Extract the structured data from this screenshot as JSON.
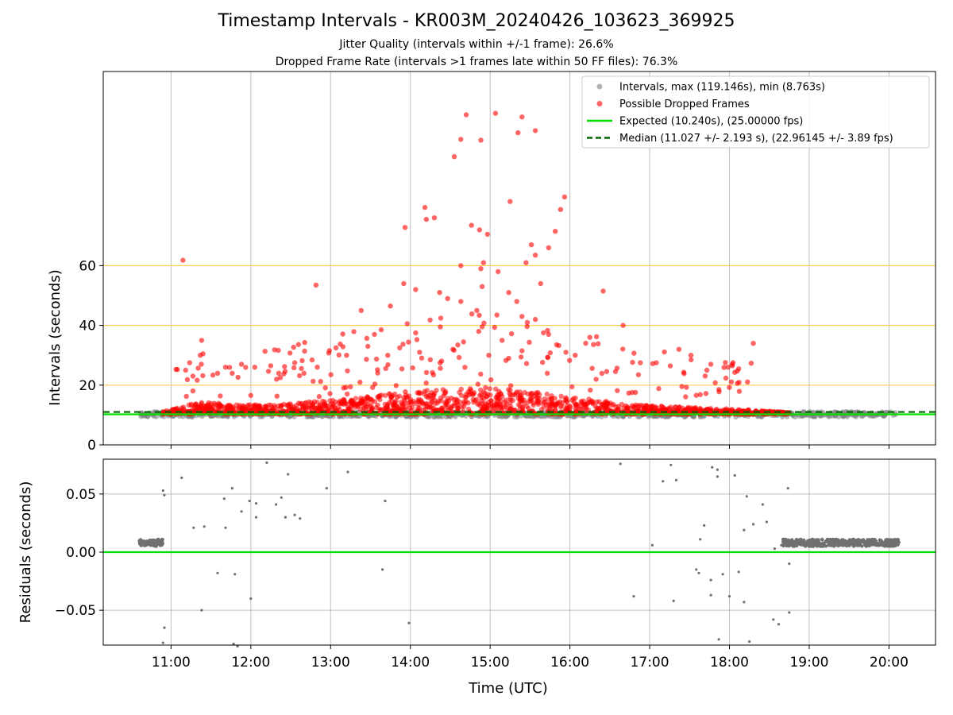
{
  "figure": {
    "title": "Timestamp Intervals - KR003M_20240426_103623_369925",
    "subtitle_jitter": "Jitter Quality (intervals within +/-1 frame): 26.6%",
    "subtitle_dropped": "Dropped Frame Rate (intervals >1 frames late within 50 FF files): 76.3%"
  },
  "chart_data": [
    {
      "type": "scatter",
      "ylabel": "Intervals (seconds)",
      "xlim": [
        "10:09",
        "20:35"
      ],
      "ylim": [
        0,
        125
      ],
      "y_ticks": [
        0,
        20,
        40,
        60
      ],
      "reference_lines": [
        20,
        40,
        60
      ],
      "grid": true,
      "legend_position": "top-right",
      "colors": {
        "intervals": "#808080",
        "dropped": "#ff0000",
        "expected": "#00dd00",
        "median": "#006400",
        "reference": "#ffcc55"
      },
      "legend": {
        "intervals": "Intervals, max (119.146s), min (8.763s)",
        "dropped": "Possible Dropped Frames",
        "expected": "Expected (10.240s), (25.00000 fps)",
        "median": "Median (11.027 +/- 2.193 s), (22.96145 +/- 3.89 fps)"
      },
      "expected_interval": 10.24,
      "median_interval": 11.027,
      "intervals_series": {
        "name": "Intervals, max (119.146s), min (8.763s)",
        "x_range": [
          "10:36",
          "20:05"
        ],
        "y_typical": 10.24,
        "y_min": 8.763,
        "y_max": 119.146
      },
      "dropped_frames_series": {
        "name": "Possible Dropped Frames",
        "points": [
          [
            "11:09",
            61.8
          ],
          [
            "12:49",
            53.5
          ],
          [
            "13:56",
            72.8
          ],
          [
            "14:11",
            79.5
          ],
          [
            "14:12",
            75.5
          ],
          [
            "14:18",
            76.0
          ],
          [
            "14:33",
            96.5
          ],
          [
            "14:38",
            102.3
          ],
          [
            "14:46",
            73.5
          ],
          [
            "14:52",
            72.0
          ],
          [
            "14:58",
            70.5
          ],
          [
            "14:42",
            110.5
          ],
          [
            "14:53",
            102.0
          ],
          [
            "15:04",
            111.0
          ],
          [
            "15:21",
            104.5
          ],
          [
            "15:34",
            105.2
          ],
          [
            "15:24",
            109.8
          ],
          [
            "15:49",
            71.5
          ],
          [
            "15:56",
            83.0
          ],
          [
            "15:53",
            78.8
          ],
          [
            "15:15",
            81.5
          ],
          [
            "14:38",
            60.0
          ],
          [
            "14:53",
            59.0
          ],
          [
            "14:55",
            61.0
          ],
          [
            "15:06",
            58.0
          ],
          [
            "15:27",
            61.0
          ],
          [
            "15:34",
            63.5
          ],
          [
            "15:38",
            54.0
          ],
          [
            "15:31",
            67.0
          ],
          [
            "15:44",
            66.0
          ],
          [
            "14:04",
            52.0
          ],
          [
            "13:55",
            54.0
          ],
          [
            "14:22",
            51.0
          ],
          [
            "14:28",
            49.0
          ],
          [
            "14:38",
            48.0
          ],
          [
            "14:54",
            53.0
          ],
          [
            "14:50",
            45.0
          ],
          [
            "15:14",
            51.0
          ],
          [
            "15:20",
            48.0
          ],
          [
            "15:24",
            43.0
          ],
          [
            "15:28",
            41.0
          ],
          [
            "15:34",
            42.0
          ],
          [
            "16:15",
            36.0
          ],
          [
            "16:25",
            51.5
          ],
          [
            "16:40",
            40.0
          ],
          [
            "16:53",
            27.5
          ],
          [
            "17:05",
            27.5
          ],
          [
            "17:22",
            32.0
          ],
          [
            "17:31",
            30.0
          ],
          [
            "17:43",
            25.0
          ],
          [
            "17:46",
            27.0
          ],
          [
            "17:59",
            26.0
          ],
          [
            "18:02",
            27.0
          ],
          [
            "18:18",
            34.0
          ],
          [
            "13:23",
            45.0
          ],
          [
            "13:45",
            46.5
          ],
          [
            "13:52",
            32.5
          ],
          [
            "14:04",
            37.5
          ],
          [
            "14:07",
            31.0
          ],
          [
            "14:15",
            28.5
          ],
          [
            "14:32",
            32.0
          ],
          [
            "14:40",
            34.5
          ],
          [
            "14:59",
            30.0
          ],
          [
            "15:09",
            35.0
          ],
          [
            "15:14",
            29.0
          ],
          [
            "15:24",
            31.5
          ],
          [
            "15:44",
            37.0
          ],
          [
            "15:50",
            33.5
          ],
          [
            "15:57",
            31.0
          ],
          [
            "16:04",
            30.0
          ],
          [
            "11:11",
            25.0
          ],
          [
            "11:14",
            27.5
          ],
          [
            "11:22",
            30.0
          ],
          [
            "11:23",
            35.0
          ],
          [
            "11:24",
            30.5
          ],
          [
            "11:35",
            24.0
          ],
          [
            "11:41",
            26.0
          ],
          [
            "11:46",
            24.0
          ],
          [
            "11:53",
            27.0
          ],
          [
            "12:03",
            26.0
          ],
          [
            "12:15",
            26.5
          ],
          [
            "12:21",
            24.0
          ],
          [
            "12:33",
            27.5
          ],
          [
            "12:40",
            24.0
          ],
          [
            "12:50",
            26.0
          ],
          [
            "13:04",
            32.5
          ],
          [
            "13:12",
            30.0
          ],
          [
            "13:28",
            33.0
          ],
          [
            "13:33",
            37.0
          ],
          [
            "13:43",
            30.0
          ]
        ],
        "dense_band": [
          [
            10.9,
            11.0
          ],
          [
            11.35,
            14.0
          ],
          [
            11.8,
            13.0
          ],
          [
            12.3,
            13.0
          ],
          [
            12.8,
            14.0
          ],
          [
            13.3,
            15.0
          ],
          [
            13.8,
            16.5
          ],
          [
            14.3,
            17.5
          ],
          [
            14.8,
            18.0
          ],
          [
            15.3,
            17.5
          ],
          [
            15.8,
            16.0
          ],
          [
            16.3,
            14.5
          ],
          [
            16.8,
            13.0
          ],
          [
            17.3,
            12.5
          ],
          [
            17.8,
            12.0
          ],
          [
            18.3,
            11.5
          ],
          [
            18.75,
            10.8
          ]
        ]
      }
    },
    {
      "type": "scatter",
      "ylabel": "Residuals (seconds)",
      "xlabel": "Time (UTC)",
      "xlim": [
        "10:09",
        "20:35"
      ],
      "ylim": [
        -0.08,
        0.08
      ],
      "y_ticks": [
        -0.05,
        0.0,
        0.05
      ],
      "y_tick_labels": [
        "−0.05",
        "0.00",
        "0.05"
      ],
      "x_ticks": [
        "11:00",
        "12:00",
        "13:00",
        "14:00",
        "15:00",
        "16:00",
        "17:00",
        "18:00",
        "19:00",
        "20:00"
      ],
      "zero_line_color": "#00dd00",
      "point_color": "#707070",
      "grid": true,
      "series": [
        {
          "points": [
            [
              "10:54",
              0.053
            ],
            [
              "10:55",
              0.049
            ],
            [
              "11:08",
              0.064
            ],
            [
              "10:55",
              -0.065
            ],
            [
              "10:54",
              -0.078
            ],
            [
              "11:17",
              0.021
            ],
            [
              "11:25",
              0.022
            ],
            [
              "11:35",
              -0.018
            ],
            [
              "11:40",
              0.046
            ],
            [
              "11:41",
              0.021
            ],
            [
              "11:46",
              0.055
            ],
            [
              "11:48",
              -0.019
            ],
            [
              "11:47",
              -0.079
            ],
            [
              "11:50",
              -0.081
            ],
            [
              "11:53",
              0.035
            ],
            [
              "11:59",
              0.044
            ],
            [
              "12:04",
              0.042
            ],
            [
              "12:04",
              0.03
            ],
            [
              "12:12",
              0.077
            ],
            [
              "12:19",
              0.041
            ],
            [
              "12:23",
              0.047
            ],
            [
              "12:26",
              0.03
            ],
            [
              "12:28",
              0.067
            ],
            [
              "12:33",
              0.032
            ],
            [
              "12:37",
              0.029
            ],
            [
              "12:57",
              0.055
            ],
            [
              "13:13",
              0.069
            ],
            [
              "13:39",
              -0.015
            ],
            [
              "13:41",
              0.044
            ],
            [
              "13:59",
              -0.061
            ],
            [
              "12:00",
              -0.04
            ],
            [
              "11:23",
              -0.05
            ],
            [
              "16:38",
              0.076
            ],
            [
              "16:48",
              -0.038
            ],
            [
              "17:02",
              0.006
            ],
            [
              "17:10",
              0.061
            ],
            [
              "17:16",
              0.075
            ],
            [
              "17:18",
              -0.042
            ],
            [
              "17:20",
              0.062
            ],
            [
              "17:35",
              -0.015
            ],
            [
              "17:37",
              -0.018
            ],
            [
              "17:38",
              0.011
            ],
            [
              "17:41",
              0.023
            ],
            [
              "17:46",
              -0.024
            ],
            [
              "17:46",
              -0.037
            ],
            [
              "17:47",
              0.073
            ],
            [
              "17:51",
              0.071
            ],
            [
              "17:51",
              0.065
            ],
            [
              "17:52",
              -0.075
            ],
            [
              "17:55",
              -0.019
            ],
            [
              "18:00",
              -0.038
            ],
            [
              "18:04",
              0.066
            ],
            [
              "18:07",
              -0.017
            ],
            [
              "18:11",
              -0.043
            ],
            [
              "18:11",
              0.019
            ],
            [
              "18:13",
              0.048
            ],
            [
              "18:15",
              -0.077
            ],
            [
              "18:18",
              0.024
            ],
            [
              "18:25",
              0.041
            ],
            [
              "18:28",
              0.026
            ],
            [
              "18:33",
              -0.058
            ],
            [
              "18:37",
              -0.062
            ],
            [
              "18:44",
              0.055
            ],
            [
              "18:45",
              -0.052
            ],
            [
              "18:45",
              -0.01
            ],
            [
              "18:39",
              0.006
            ],
            [
              "18:34",
              0.003
            ]
          ],
          "dense_segments": [
            {
              "x_range": [
                "10:36",
                "10:54"
              ],
              "y": 0.008
            },
            {
              "x_range": [
                "18:40",
                "20:08"
              ],
              "y": 0.008
            }
          ]
        }
      ]
    }
  ]
}
